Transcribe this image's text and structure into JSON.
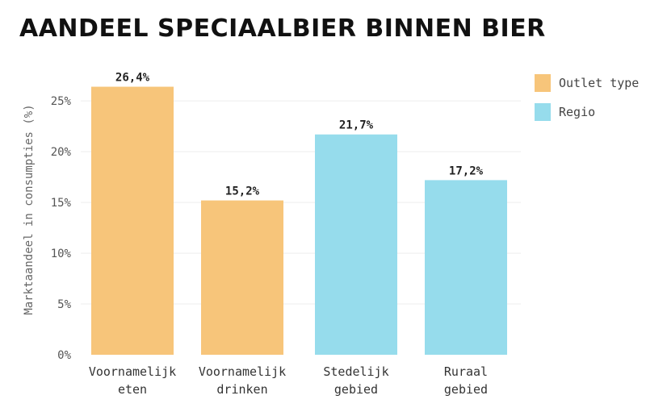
{
  "chart_data": {
    "type": "bar",
    "title": "AANDEEL SPECIAALBIER BINNEN BIER",
    "ylabel": "Marktaandeel in consumpties (%)",
    "ylim": [
      0,
      27
    ],
    "yticks": [
      0,
      5,
      10,
      15,
      20,
      25
    ],
    "ytick_labels": [
      "0%",
      "5%",
      "10%",
      "15%",
      "20%",
      "25%"
    ],
    "grid": true,
    "legend": "top-right",
    "legend_entries": [
      {
        "label": "Outlet type",
        "color": "#f7c57a"
      },
      {
        "label": "Regio",
        "color": "#96dcec"
      }
    ],
    "bars": [
      {
        "category": [
          "Voornamelijk",
          "eten"
        ],
        "value": 26.4,
        "label": "26,4%",
        "group": 0
      },
      {
        "category": [
          "Voornamelijk",
          "drinken"
        ],
        "value": 15.2,
        "label": "15,2%",
        "group": 0
      },
      {
        "category": [
          "Stedelijk",
          "gebied"
        ],
        "value": 21.7,
        "label": "21,7%",
        "group": 1
      },
      {
        "category": [
          "Ruraal",
          "gebied"
        ],
        "value": 17.2,
        "label": "17,2%",
        "group": 1
      }
    ]
  }
}
